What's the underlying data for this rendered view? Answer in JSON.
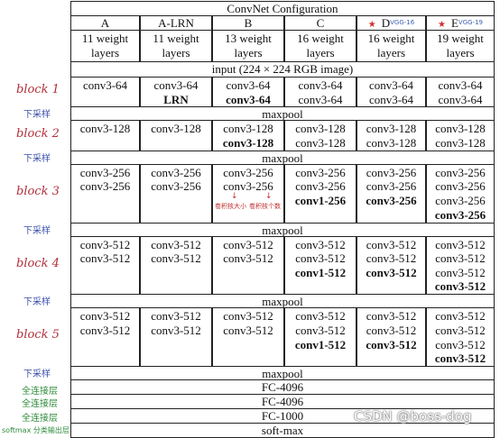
{
  "table": {
    "title": "ConvNet Configuration",
    "columns": [
      {
        "name": "A",
        "depth": "11 weight",
        "unit": "layers"
      },
      {
        "name": "A-LRN",
        "depth": "11 weight",
        "unit": "layers"
      },
      {
        "name": "B",
        "depth": "13 weight",
        "unit": "layers"
      },
      {
        "name": "C",
        "depth": "16 weight",
        "unit": "layers"
      },
      {
        "name": "D",
        "note": "VGG-16",
        "depth": "16 weight",
        "unit": "layers"
      },
      {
        "name": "E",
        "note": "VGG-19",
        "depth": "19 weight",
        "unit": "layers"
      }
    ],
    "input": "input (224 × 224 RGB image)",
    "stages": [
      {
        "cells": [
          [
            "conv3-64"
          ],
          [
            "conv3-64",
            {
              "text": "LRN",
              "bold": true
            }
          ],
          [
            "conv3-64",
            {
              "text": "conv3-64",
              "bold": true
            }
          ],
          [
            "conv3-64",
            "conv3-64"
          ],
          [
            "conv3-64",
            "conv3-64"
          ],
          [
            "conv3-64",
            "conv3-64"
          ]
        ]
      },
      {
        "cells": [
          [
            "conv3-128"
          ],
          [
            "conv3-128"
          ],
          [
            "conv3-128",
            {
              "text": "conv3-128",
              "bold": true
            }
          ],
          [
            "conv3-128",
            "conv3-128"
          ],
          [
            "conv3-128",
            "conv3-128"
          ],
          [
            "conv3-128",
            "conv3-128"
          ]
        ]
      },
      {
        "cells": [
          [
            "conv3-256",
            "conv3-256"
          ],
          [
            "conv3-256",
            "conv3-256"
          ],
          [
            "conv3-256",
            "conv3-256"
          ],
          [
            "conv3-256",
            "conv3-256",
            {
              "text": "conv1-256",
              "bold": true
            }
          ],
          [
            "conv3-256",
            "conv3-256",
            {
              "text": "conv3-256",
              "bold": true
            }
          ],
          [
            "conv3-256",
            "conv3-256",
            "conv3-256",
            {
              "text": "conv3-256",
              "bold": true
            }
          ]
        ]
      },
      {
        "cells": [
          [
            "conv3-512",
            "conv3-512"
          ],
          [
            "conv3-512",
            "conv3-512"
          ],
          [
            "conv3-512",
            "conv3-512"
          ],
          [
            "conv3-512",
            "conv3-512",
            {
              "text": "conv1-512",
              "bold": true
            }
          ],
          [
            "conv3-512",
            "conv3-512",
            {
              "text": "conv3-512",
              "bold": true
            }
          ],
          [
            "conv3-512",
            "conv3-512",
            "conv3-512",
            {
              "text": "conv3-512",
              "bold": true
            }
          ]
        ]
      },
      {
        "cells": [
          [
            "conv3-512",
            "conv3-512"
          ],
          [
            "conv3-512",
            "conv3-512"
          ],
          [
            "conv3-512",
            "conv3-512"
          ],
          [
            "conv3-512",
            "conv3-512",
            {
              "text": "conv1-512",
              "bold": true
            }
          ],
          [
            "conv3-512",
            "conv3-512",
            {
              "text": "conv3-512",
              "bold": true
            }
          ],
          [
            "conv3-512",
            "conv3-512",
            "conv3-512",
            {
              "text": "conv3-512",
              "bold": true
            }
          ]
        ]
      }
    ],
    "pools": [
      "maxpool",
      "maxpool",
      "maxpool",
      "maxpool",
      "maxpool"
    ],
    "classifier": [
      "FC-4096",
      "FC-4096",
      "FC-1000",
      "soft-max"
    ],
    "cell_notes": [
      "卷积核大小",
      "卷积核个数"
    ]
  },
  "annotations": {
    "blocks": [
      "block 1",
      "block 2",
      "block 3",
      "block 4",
      "block 5"
    ],
    "downsample": [
      "下采样",
      "下采样",
      "下采样",
      "下采样",
      "下采样"
    ],
    "fc": [
      "全连接层",
      "全连接层",
      "全连接层"
    ],
    "softmax": "softmax 分类输出层"
  },
  "watermark": "CSDN @boss-dog"
}
